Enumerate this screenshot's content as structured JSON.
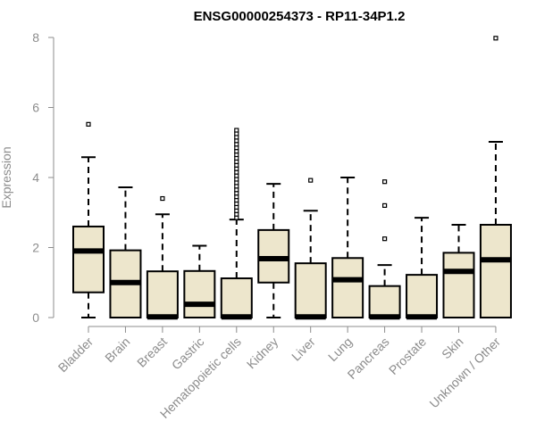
{
  "chart_data": {
    "type": "boxplot",
    "title": "ENSG00000254373 - RP11-34P1.2",
    "ylabel": "Expression",
    "ylim": [
      0,
      8
    ],
    "yticks": [
      0,
      2,
      4,
      6,
      8
    ],
    "box_fill": "#ede6cc",
    "categories": [
      "Bladder",
      "Brain",
      "Breast",
      "Gastric",
      "Hematopoietic cells",
      "Kidney",
      "Liver",
      "Lung",
      "Pancreas",
      "Prostate",
      "Skin",
      "Unknown / Other"
    ],
    "boxes": [
      {
        "whisker_low": 0,
        "q1": 0.72,
        "median": 1.9,
        "q3": 2.6,
        "whisker_high": 4.58,
        "outliers": [
          5.52
        ]
      },
      {
        "whisker_low": 0,
        "q1": 0.0,
        "median": 1.0,
        "q3": 1.92,
        "whisker_high": 3.72,
        "outliers": []
      },
      {
        "whisker_low": 0,
        "q1": 0.0,
        "median": 0.02,
        "q3": 1.32,
        "whisker_high": 2.95,
        "outliers": [
          3.4
        ]
      },
      {
        "whisker_low": 0,
        "q1": 0.0,
        "median": 0.38,
        "q3": 1.33,
        "whisker_high": 2.05,
        "outliers": []
      },
      {
        "whisker_low": 0,
        "q1": 0.0,
        "median": 0.02,
        "q3": 1.12,
        "whisker_high": 2.8,
        "outliers": [
          2.85,
          2.95,
          3.05,
          3.15,
          3.25,
          3.35,
          3.45,
          3.55,
          3.65,
          3.75,
          3.85,
          3.95,
          4.05,
          4.15,
          4.25,
          4.35,
          4.45,
          4.55,
          4.65,
          4.75,
          4.85,
          4.95,
          5.05,
          5.15,
          5.25,
          5.35
        ]
      },
      {
        "whisker_low": 0,
        "q1": 1.0,
        "median": 1.68,
        "q3": 2.5,
        "whisker_high": 3.82,
        "outliers": []
      },
      {
        "whisker_low": 0,
        "q1": 0.0,
        "median": 0.02,
        "q3": 1.55,
        "whisker_high": 3.05,
        "outliers": [
          3.92
        ]
      },
      {
        "whisker_low": 0,
        "q1": 0.0,
        "median": 1.08,
        "q3": 1.7,
        "whisker_high": 4.0,
        "outliers": []
      },
      {
        "whisker_low": 0,
        "q1": 0.0,
        "median": 0.02,
        "q3": 0.9,
        "whisker_high": 1.5,
        "outliers": [
          2.25,
          3.2,
          3.88
        ]
      },
      {
        "whisker_low": 0,
        "q1": 0.0,
        "median": 0.02,
        "q3": 1.22,
        "whisker_high": 2.85,
        "outliers": []
      },
      {
        "whisker_low": 0,
        "q1": 0.0,
        "median": 1.32,
        "q3": 1.85,
        "whisker_high": 2.65,
        "outliers": []
      },
      {
        "whisker_low": 0,
        "q1": 0.0,
        "median": 1.65,
        "q3": 2.65,
        "whisker_high": 5.02,
        "outliers": [
          7.98
        ]
      }
    ]
  }
}
